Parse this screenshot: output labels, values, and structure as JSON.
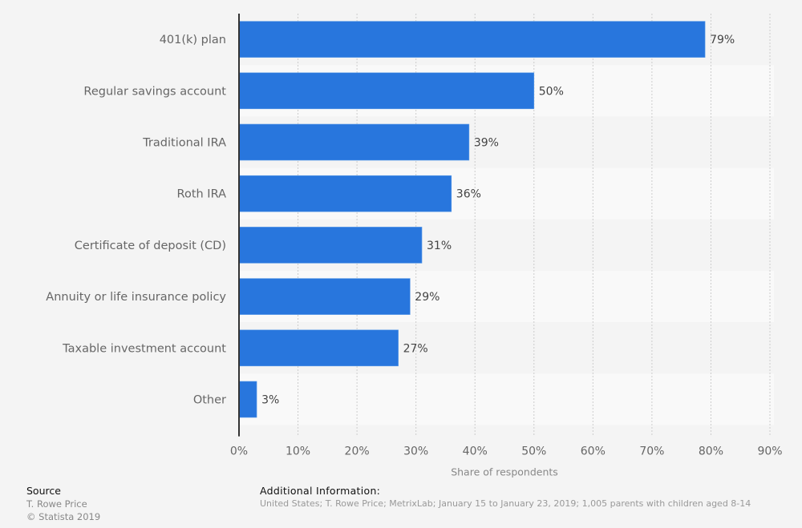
{
  "chart_data": {
    "type": "bar",
    "orientation": "horizontal",
    "title": "",
    "categories": [
      "401(k) plan",
      "Regular savings account",
      "Traditional IRA",
      "Roth IRA",
      "Certificate of deposit (CD)",
      "Annuity or life insurance policy",
      "Taxable investment account",
      "Other"
    ],
    "values": [
      79,
      50,
      39,
      36,
      31,
      29,
      27,
      3
    ],
    "data_labels": [
      "79%",
      "50%",
      "39%",
      "36%",
      "31%",
      "29%",
      "27%",
      "3%"
    ],
    "xlabel": "Share of respondents",
    "ylabel": "",
    "xlim": [
      0,
      90
    ],
    "xticks": [
      0,
      10,
      20,
      30,
      40,
      50,
      60,
      70,
      80,
      90
    ],
    "xtick_labels": [
      "0%",
      "10%",
      "20%",
      "30%",
      "40%",
      "50%",
      "60%",
      "70%",
      "80%",
      "90%"
    ],
    "grid": "vertical dotted",
    "legend": "none",
    "bar_color": "#2876dd"
  },
  "footer": {
    "source_title": "Source",
    "source_lines": [
      "T. Rowe Price",
      "© Statista 2019"
    ],
    "additional_title": "Additional Information:",
    "additional_text": "United States; T. Rowe Price; MetrixLab; January 15 to January 23, 2019; 1,005 parents with children aged 8-14"
  }
}
